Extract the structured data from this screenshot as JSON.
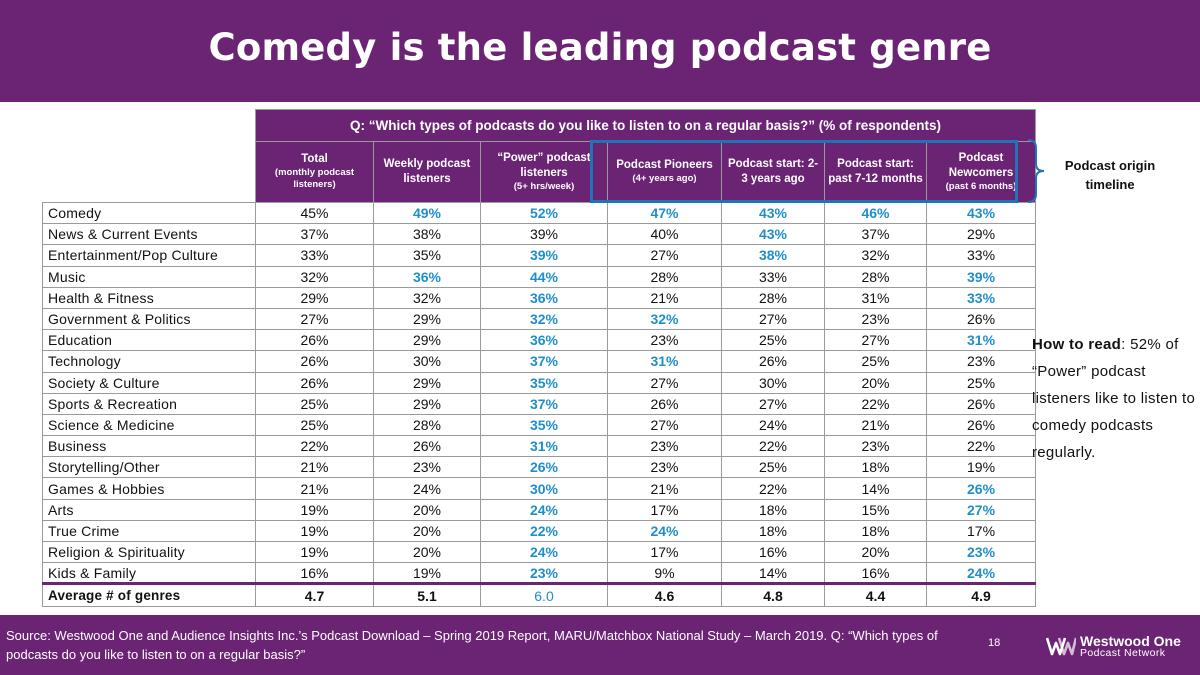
{
  "title": "Comedy is the leading podcast genre",
  "question": "Q: “Which types of podcasts do you like to listen to on a regular basis?” (% of respondents)",
  "columns": [
    {
      "label": "Total",
      "sub": "(monthly podcast listeners)"
    },
    {
      "label": "Weekly podcast listeners",
      "sub": ""
    },
    {
      "label": "“Power” podcast listeners",
      "sub": "(5+ hrs/week)"
    },
    {
      "label": "Podcast Pioneers",
      "sub": "(4+ years ago)"
    },
    {
      "label": "Podcast start: 2-3 years ago",
      "sub": ""
    },
    {
      "label": "Podcast start: past 7-12 months",
      "sub": ""
    },
    {
      "label": "Podcast Newcomers",
      "sub": "(past 6 months)"
    }
  ],
  "rows": [
    {
      "genre": "Comedy",
      "values": [
        "45%",
        "49%",
        "52%",
        "47%",
        "43%",
        "46%",
        "43%"
      ],
      "highlight": [
        1,
        2,
        3,
        4,
        5,
        6
      ]
    },
    {
      "genre": "News & Current Events",
      "values": [
        "37%",
        "38%",
        "39%",
        "40%",
        "43%",
        "37%",
        "29%"
      ],
      "highlight": [
        4
      ]
    },
    {
      "genre": "Entertainment/Pop Culture",
      "values": [
        "33%",
        "35%",
        "39%",
        "27%",
        "38%",
        "32%",
        "33%"
      ],
      "highlight": [
        2,
        4
      ]
    },
    {
      "genre": "Music",
      "values": [
        "32%",
        "36%",
        "44%",
        "28%",
        "33%",
        "28%",
        "39%"
      ],
      "highlight": [
        1,
        2,
        6
      ]
    },
    {
      "genre": "Health & Fitness",
      "values": [
        "29%",
        "32%",
        "36%",
        "21%",
        "28%",
        "31%",
        "33%"
      ],
      "highlight": [
        2,
        6
      ]
    },
    {
      "genre": "Government & Politics",
      "values": [
        "27%",
        "29%",
        "32%",
        "32%",
        "27%",
        "23%",
        "26%"
      ],
      "highlight": [
        2,
        3
      ]
    },
    {
      "genre": "Education",
      "values": [
        "26%",
        "29%",
        "36%",
        "23%",
        "25%",
        "27%",
        "31%"
      ],
      "highlight": [
        2,
        6
      ]
    },
    {
      "genre": "Technology",
      "values": [
        "26%",
        "30%",
        "37%",
        "31%",
        "26%",
        "25%",
        "23%"
      ],
      "highlight": [
        2,
        3
      ]
    },
    {
      "genre": "Society & Culture",
      "values": [
        "26%",
        "29%",
        "35%",
        "27%",
        "30%",
        "20%",
        "25%"
      ],
      "highlight": [
        2
      ]
    },
    {
      "genre": "Sports & Recreation",
      "values": [
        "25%",
        "29%",
        "37%",
        "26%",
        "27%",
        "22%",
        "26%"
      ],
      "highlight": [
        2
      ]
    },
    {
      "genre": "Science & Medicine",
      "values": [
        "25%",
        "28%",
        "35%",
        "27%",
        "24%",
        "21%",
        "26%"
      ],
      "highlight": [
        2
      ]
    },
    {
      "genre": "Business",
      "values": [
        "22%",
        "26%",
        "31%",
        "23%",
        "22%",
        "23%",
        "22%"
      ],
      "highlight": [
        2
      ]
    },
    {
      "genre": "Storytelling/Other",
      "values": [
        "21%",
        "23%",
        "26%",
        "23%",
        "25%",
        "18%",
        "19%"
      ],
      "highlight": [
        2
      ]
    },
    {
      "genre": "Games & Hobbies",
      "values": [
        "21%",
        "24%",
        "30%",
        "21%",
        "22%",
        "14%",
        "26%"
      ],
      "highlight": [
        2,
        6
      ]
    },
    {
      "genre": "Arts",
      "values": [
        "19%",
        "20%",
        "24%",
        "17%",
        "18%",
        "15%",
        "27%"
      ],
      "highlight": [
        2,
        6
      ]
    },
    {
      "genre": "True Crime",
      "values": [
        "19%",
        "20%",
        "22%",
        "24%",
        "18%",
        "18%",
        "17%"
      ],
      "highlight": [
        2,
        3
      ]
    },
    {
      "genre": "Religion & Spirituality",
      "values": [
        "19%",
        "20%",
        "24%",
        "17%",
        "16%",
        "20%",
        "23%"
      ],
      "highlight": [
        2,
        6
      ]
    },
    {
      "genre": "Kids & Family",
      "values": [
        "16%",
        "19%",
        "23%",
        "9%",
        "14%",
        "16%",
        "24%"
      ],
      "highlight": [
        2,
        6
      ]
    }
  ],
  "average": {
    "genre": "Average # of genres",
    "values": [
      "4.7",
      "5.1",
      "6.0",
      "4.6",
      "4.8",
      "4.4",
      "4.9"
    ],
    "highlight": [
      2
    ]
  },
  "origin_label": "Podcast origin timeline",
  "how_to_read": {
    "label": "How to read",
    "colon": ":",
    "text": "52% of “Power” podcast listeners like to listen to comedy podcasts regularly."
  },
  "footer": {
    "source": "Source: Westwood One and Audience Insights Inc.’s Podcast Download – Spring 2019 Report, MARU/Matchbox National Study – March 2019. Q: “Which types of podcasts do you like to listen to on a regular basis?”",
    "page": "18",
    "logo_line1": "Westwood One",
    "logo_line2": "Podcast Network"
  },
  "colors": {
    "purple": "#6b2474",
    "highlight_blue": "#1f8fc9",
    "box_blue": "#1f73b7"
  },
  "icons": {
    "brace": "right-curly-brace-icon",
    "logo": "westwood-one-logo-icon"
  }
}
